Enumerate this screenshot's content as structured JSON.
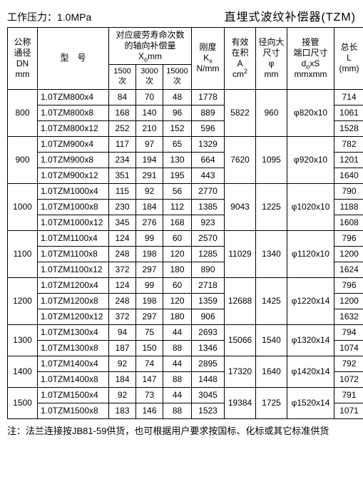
{
  "header": {
    "pressure_label": "工作压力：1.0MPa",
    "title": "直埋式波纹补偿器(TZM)"
  },
  "columns": {
    "dn": {
      "l1": "公称",
      "l2": "通径",
      "l3": "DN",
      "l4": "mm"
    },
    "model": {
      "l1": "型　号"
    },
    "axial_group": {
      "l1": "对应疲劳寿命次数",
      "l2": "的轴向补偿量",
      "l3": "X",
      "sub": "o",
      "l4": "mm"
    },
    "axial_sub": {
      "c1a": "1500",
      "c1b": "次",
      "c2a": "3000",
      "c2b": "次",
      "c3a": "15000",
      "c3b": "次"
    },
    "stiffness": {
      "l1": "刚度",
      "l2": "K",
      "sub": "x",
      "l3": "N/mm"
    },
    "area": {
      "l1": "有效",
      "l2": "在积",
      "l3": "A",
      "l4": "cm",
      "sup": "2"
    },
    "od": {
      "l1": "径向大",
      "l2": "尺寸",
      "l3": "φ",
      "l4": "mm"
    },
    "pipe": {
      "l1": "接管",
      "l2": "端口尺寸",
      "l3": "d",
      "sub": "o",
      "l3b": "xS",
      "l4": "mmxmm"
    },
    "length": {
      "l1": "总长",
      "l2": "L",
      "l3": "(mm)"
    }
  },
  "groups": [
    {
      "dn": "800",
      "area": "5822",
      "od": "960",
      "pipe": "φ820x10",
      "rows": [
        {
          "model": "1.0TZM800x4",
          "x1500": "84",
          "x3000": "70",
          "x15000": "48",
          "k": "1778",
          "L": "714"
        },
        {
          "model": "1.0TZM800x8",
          "x1500": "168",
          "x3000": "140",
          "x15000": "96",
          "k": "889",
          "L": "1061"
        },
        {
          "model": "1.0TZM800x12",
          "x1500": "252",
          "x3000": "210",
          "x15000": "152",
          "k": "596",
          "L": "1528"
        }
      ]
    },
    {
      "dn": "900",
      "area": "7620",
      "od": "1095",
      "pipe": "φ920x10",
      "rows": [
        {
          "model": "1.0TZM900x4",
          "x1500": "117",
          "x3000": "97",
          "x15000": "65",
          "k": "1329",
          "L": "782"
        },
        {
          "model": "1.0TZM900x8",
          "x1500": "234",
          "x3000": "194",
          "x15000": "130",
          "k": "664",
          "L": "1201"
        },
        {
          "model": "1.0TZM900x12",
          "x1500": "351",
          "x3000": "291",
          "x15000": "195",
          "k": "443",
          "L": "1640"
        }
      ]
    },
    {
      "dn": "1000",
      "area": "9043",
      "od": "1225",
      "pipe": "φ1020x10",
      "rows": [
        {
          "model": "1.0TZM1000x4",
          "x1500": "115",
          "x3000": "92",
          "x15000": "56",
          "k": "2770",
          "L": "790"
        },
        {
          "model": "1.0TZM1000x8",
          "x1500": "230",
          "x3000": "184",
          "x15000": "112",
          "k": "1385",
          "L": "1188"
        },
        {
          "model": "1.0TZM1000x12",
          "x1500": "345",
          "x3000": "276",
          "x15000": "168",
          "k": "923",
          "L": "1608"
        }
      ]
    },
    {
      "dn": "1100",
      "area": "11029",
      "od": "1340",
      "pipe": "φ1120x10",
      "rows": [
        {
          "model": "1.0TZM1100x4",
          "x1500": "124",
          "x3000": "99",
          "x15000": "60",
          "k": "2570",
          "L": "796"
        },
        {
          "model": "1.0TZM1100x8",
          "x1500": "248",
          "x3000": "198",
          "x15000": "120",
          "k": "1285",
          "L": "1200"
        },
        {
          "model": "1.0TZM1100x12",
          "x1500": "372",
          "x3000": "297",
          "x15000": "180",
          "k": "890",
          "L": "1624"
        }
      ]
    },
    {
      "dn": "1200",
      "area": "12688",
      "od": "1425",
      "pipe": "φ1220x14",
      "rows": [
        {
          "model": "1.0TZM1200x4",
          "x1500": "124",
          "x3000": "99",
          "x15000": "60",
          "k": "2718",
          "L": "796"
        },
        {
          "model": "1.0TZM1200x8",
          "x1500": "248",
          "x3000": "198",
          "x15000": "120",
          "k": "1359",
          "L": "1200"
        },
        {
          "model": "1.0TZM1200x12",
          "x1500": "372",
          "x3000": "297",
          "x15000": "180",
          "k": "906",
          "L": "1632"
        }
      ]
    },
    {
      "dn": "1300",
      "area": "15066",
      "od": "1540",
      "pipe": "φ1320x14",
      "rows": [
        {
          "model": "1.0TZM1300x4",
          "x1500": "94",
          "x3000": "75",
          "x15000": "44",
          "k": "2693",
          "L": "794"
        },
        {
          "model": "1.0TZM1300x8",
          "x1500": "187",
          "x3000": "150",
          "x15000": "88",
          "k": "1346",
          "L": "1074"
        }
      ]
    },
    {
      "dn": "1400",
      "area": "17320",
      "od": "1640",
      "pipe": "φ1420x14",
      "rows": [
        {
          "model": "1.0TZM1400x4",
          "x1500": "92",
          "x3000": "74",
          "x15000": "44",
          "k": "2895",
          "L": "792"
        },
        {
          "model": "1.0TZM1400x8",
          "x1500": "184",
          "x3000": "147",
          "x15000": "88",
          "k": "1448",
          "L": "1072"
        }
      ]
    },
    {
      "dn": "1500",
      "area": "19384",
      "od": "1725",
      "pipe": "φ1520x14",
      "rows": [
        {
          "model": "1.0TZM1500x4",
          "x1500": "92",
          "x3000": "73",
          "x15000": "44",
          "k": "3045",
          "L": "791"
        },
        {
          "model": "1.0TZM1500x8",
          "x1500": "183",
          "x3000": "146",
          "x15000": "88",
          "k": "1523",
          "L": "1071"
        }
      ]
    }
  ],
  "footnote": "注：法兰连接按JB81-59供货，也可根据用户要求按国标、化标或其它标准供货"
}
